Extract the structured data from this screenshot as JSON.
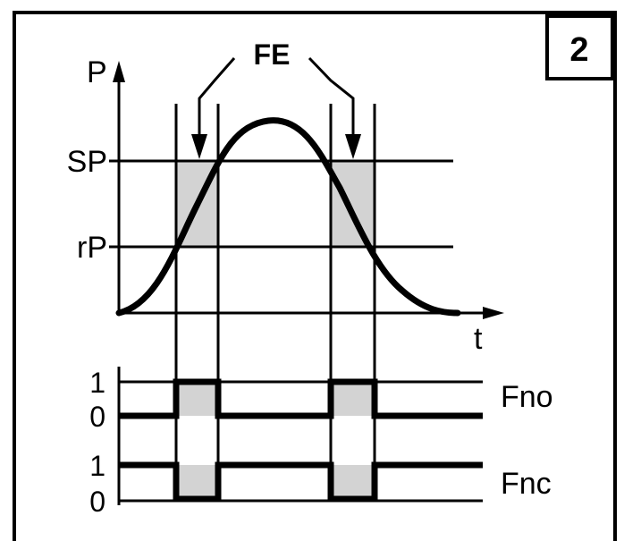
{
  "figure_number": "2",
  "annotation": "FE",
  "axes": {
    "y": "P",
    "x": "t"
  },
  "levels": {
    "sp": "SP",
    "rp": "rP"
  },
  "outputs": [
    {
      "name": "Fno",
      "high": "1",
      "low": "0"
    },
    {
      "name": "Fnc",
      "high": "1",
      "low": "0"
    }
  ],
  "colors": {
    "line": "#000000",
    "shade": "#d3d3d3",
    "background": "#ffffff"
  }
}
